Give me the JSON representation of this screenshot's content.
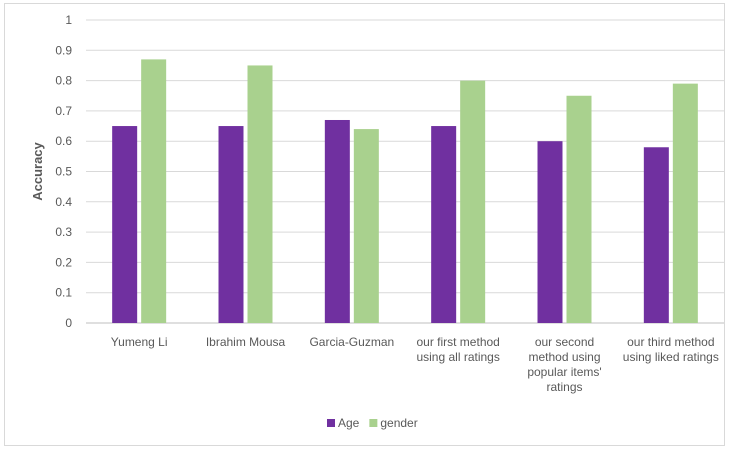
{
  "chart_data": {
    "type": "bar",
    "title": "",
    "xlabel": "",
    "ylabel": "Accuracy",
    "ylim": [
      0,
      1
    ],
    "yticks": [
      "0",
      "0.1",
      "0.2",
      "0.3",
      "0.4",
      "0.5",
      "0.6",
      "0.7",
      "0.8",
      "0.9",
      "1"
    ],
    "grid": true,
    "legend_position": "bottom",
    "categories": [
      [
        "Yumeng Li"
      ],
      [
        "Ibrahim Mousa"
      ],
      [
        "Garcia-Guzman"
      ],
      [
        "our first method",
        "using all ratings"
      ],
      [
        "our second",
        "method using",
        "popular items'",
        "ratings"
      ],
      [
        "our third method",
        "using liked ratings"
      ]
    ],
    "series": [
      {
        "name": "Age",
        "color": "#7030a0",
        "values": [
          0.65,
          0.65,
          0.67,
          0.65,
          0.6,
          0.58
        ]
      },
      {
        "name": "gender",
        "color": "#a9d18e",
        "values": [
          0.87,
          0.85,
          0.64,
          0.8,
          0.75,
          0.79
        ]
      }
    ]
  }
}
